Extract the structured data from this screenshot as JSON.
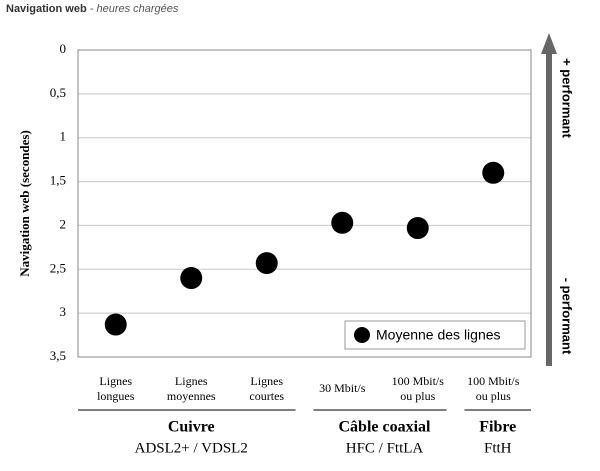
{
  "chart_data": {
    "type": "dot",
    "title": "Navigation web",
    "subtitle": " - heures chargées",
    "y_label": "Navigation web (secondes)",
    "categories": [
      "Lignes\nlongues",
      "Lignes\nmoyennes",
      "Lignes\ncourtes",
      "30 Mbit/s",
      "100 Mbit/s\nou plus",
      "100 Mbit/s\nou plus"
    ],
    "series": [
      {
        "name": "Moyenne des lignes",
        "color": "#000000",
        "values": [
          3.13,
          2.6,
          2.43,
          1.97,
          2.03,
          1.4
        ]
      }
    ],
    "groups": [
      {
        "name": "Cuivre",
        "technology": "ADSL2+ / VDSL2"
      },
      {
        "name": "Câble coaxial",
        "technology": "HFC / FttLA"
      },
      {
        "name": "Fibre",
        "technology": "FttH"
      }
    ],
    "ylim": [
      0,
      3.5
    ],
    "y_inverted": true,
    "yticks": [
      0,
      {
        "value": 0.5,
        "label": "0,5"
      },
      1,
      {
        "value": 1.5,
        "label": "1,5"
      },
      2,
      {
        "value": 2.5,
        "label": "2,5"
      },
      3,
      {
        "value": 3.5,
        "label": "3,5"
      }
    ],
    "grid": true,
    "legend": "bottom-right",
    "annotations": {
      "top": "+ performant",
      "bottom": "- performant"
    }
  }
}
